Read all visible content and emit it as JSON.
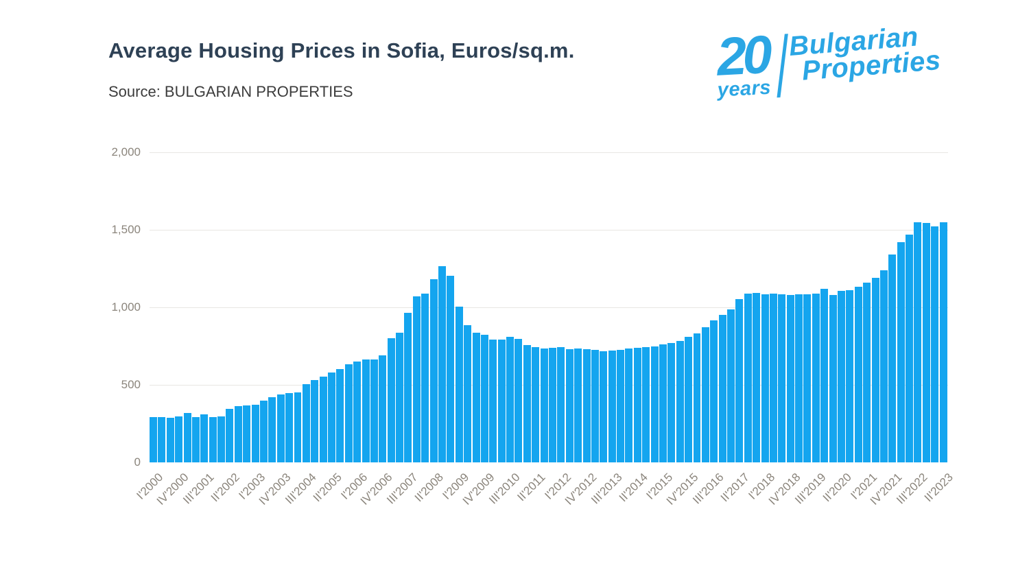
{
  "header": {
    "title": "Average Housing Prices in Sofia, Euros/sq.m.",
    "source": "Source: BULGARIAN PROPERTIES"
  },
  "logo": {
    "years_number": "20",
    "years_label": "years",
    "brand_line1": "Bulgarian",
    "brand_line2": "Properties",
    "color": "#2ba6e4"
  },
  "chart_data": {
    "type": "bar",
    "title": "Average Housing Prices in Sofia, Euros/sq.m.",
    "xlabel": "",
    "ylabel": "",
    "unit": "Euros/sq.m.",
    "ylim": [
      0,
      2000
    ],
    "yticks": [
      0,
      500,
      1000,
      1500,
      2000
    ],
    "ytick_labels": [
      "0",
      "500",
      "1,000",
      "1,500",
      "2,000"
    ],
    "grid": true,
    "legend": "none",
    "bar_color": "#14a5ef",
    "label_every": 3,
    "categories": [
      "I'2000",
      "II'2000",
      "III'2000",
      "IV'2000",
      "I'2001",
      "II'2001",
      "III'2001",
      "IV'2001",
      "I'2002",
      "II'2002",
      "III'2002",
      "IV'2002",
      "I'2003",
      "II'2003",
      "III'2003",
      "IV'2003",
      "I'2004",
      "II'2004",
      "III'2004",
      "IV'2004",
      "I'2005",
      "II'2005",
      "III'2005",
      "IV'2005",
      "I'2006",
      "II'2006",
      "III'2006",
      "IV'2006",
      "I'2007",
      "II'2007",
      "III'2007",
      "IV'2007",
      "I'2008",
      "II'2008",
      "III'2008",
      "IV'2008",
      "I'2009",
      "II'2009",
      "III'2009",
      "IV'2009",
      "I'2010",
      "II'2010",
      "III'2010",
      "IV'2010",
      "I'2011",
      "II'2011",
      "III'2011",
      "IV'2011",
      "I'2012",
      "II'2012",
      "III'2012",
      "IV'2012",
      "I'2013",
      "II'2013",
      "III'2013",
      "IV'2013",
      "I'2014",
      "II'2014",
      "III'2014",
      "IV'2014",
      "I'2015",
      "II'2015",
      "III'2015",
      "IV'2015",
      "I'2016",
      "II'2016",
      "III'2016",
      "IV'2016",
      "I'2017",
      "II'2017",
      "III'2017",
      "IV'2017",
      "I'2018",
      "II'2018",
      "III'2018",
      "IV'2018",
      "I'2019",
      "II'2019",
      "III'2019",
      "IV'2019",
      "I'2020",
      "II'2020",
      "III'2020",
      "IV'2020",
      "I'2021",
      "II'2021",
      "III'2021",
      "IV'2021",
      "I'2022",
      "II'2022",
      "III'2022",
      "IV'2022",
      "I'2023",
      "II'2023"
    ],
    "values": [
      292,
      292,
      288,
      298,
      320,
      292,
      309,
      293,
      298,
      345,
      363,
      366,
      370,
      400,
      420,
      440,
      448,
      452,
      505,
      530,
      552,
      580,
      601,
      633,
      650,
      663,
      663,
      690,
      800,
      838,
      965,
      1070,
      1090,
      1180,
      1265,
      1205,
      1005,
      885,
      838,
      825,
      790,
      790,
      810,
      795,
      758,
      745,
      736,
      740,
      744,
      730,
      734,
      728,
      724,
      716,
      721,
      727,
      733,
      738,
      744,
      750,
      760,
      770,
      785,
      810,
      830,
      870,
      915,
      950,
      985,
      1055,
      1088,
      1092,
      1085,
      1090,
      1086,
      1078,
      1082,
      1086,
      1090,
      1120,
      1078,
      1108,
      1112,
      1135,
      1160,
      1190,
      1240,
      1340,
      1420,
      1470,
      1550,
      1545,
      1520,
      1550
    ]
  }
}
